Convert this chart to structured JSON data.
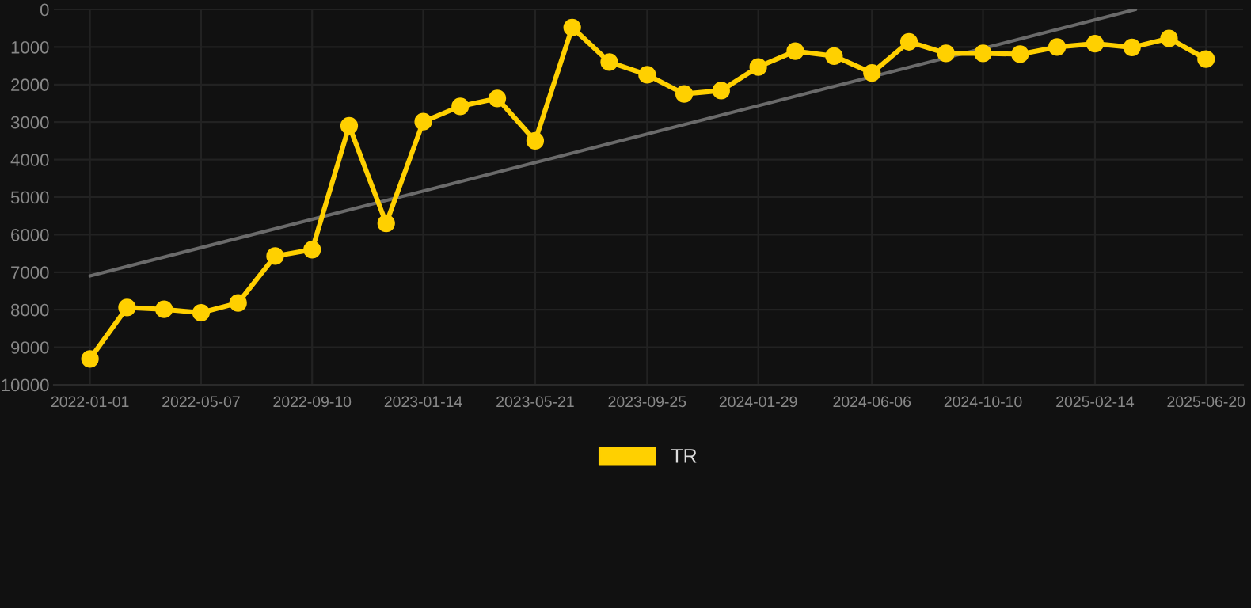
{
  "chart_data": {
    "type": "line",
    "x": [
      "2022-01-01",
      "2022-02-12",
      "2022-03-26",
      "2022-05-07",
      "2022-06-18",
      "2022-07-30",
      "2022-09-10",
      "2022-10-22",
      "2022-12-03",
      "2023-01-14",
      "2023-02-25",
      "2023-04-08",
      "2023-05-21",
      "2023-07-02",
      "2023-08-13",
      "2023-09-25",
      "2023-11-06",
      "2023-12-18",
      "2024-01-29",
      "2024-03-11",
      "2024-04-24",
      "2024-06-06",
      "2024-07-18",
      "2024-08-29",
      "2024-10-10",
      "2024-11-21",
      "2025-01-02",
      "2025-02-14",
      "2025-03-28",
      "2025-05-09",
      "2025-06-20"
    ],
    "series": [
      {
        "color": "#6a6a6a",
        "marker": "none",
        "x": [
          "2022-01-01",
          "2025-04-01"
        ],
        "values": [
          7100,
          0
        ]
      },
      {
        "name": "TR",
        "color": "#ffd000",
        "marker": "circle",
        "values": [
          9310,
          7940,
          7990,
          8080,
          7820,
          6570,
          6400,
          3100,
          5700,
          2990,
          2580,
          2370,
          3500,
          480,
          1400,
          1740,
          2250,
          2160,
          1530,
          1110,
          1240,
          1690,
          860,
          1170,
          1170,
          1190,
          1000,
          910,
          1010,
          770,
          1320
        ]
      }
    ],
    "xlim": [
      "2021-11-21",
      "2025-08-01"
    ],
    "xticks": [
      "2022-01-01",
      "2022-05-07",
      "2022-09-10",
      "2023-01-14",
      "2023-05-21",
      "2023-09-25",
      "2024-01-29",
      "2024-06-06",
      "2024-10-10",
      "2025-02-14",
      "2025-06-20"
    ],
    "ylim": [
      10000,
      0
    ],
    "yticks": [
      0,
      1000,
      2000,
      3000,
      4000,
      5000,
      6000,
      7000,
      8000,
      9000,
      10000
    ],
    "grid": true,
    "legend": "bottom",
    "line_style": "solid"
  }
}
